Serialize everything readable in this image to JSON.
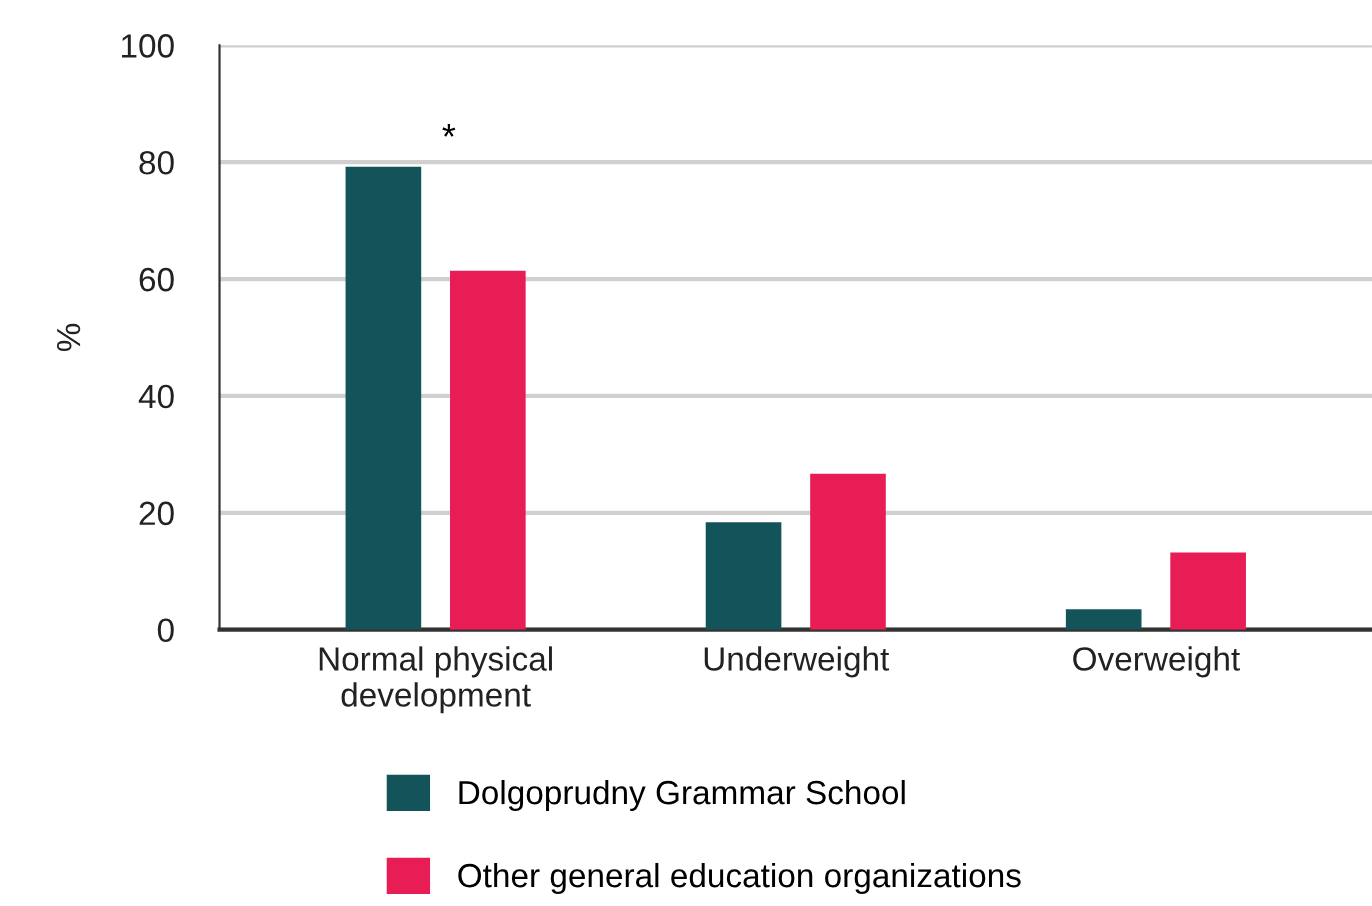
{
  "chart_data": {
    "type": "bar",
    "ylabel": "%",
    "categories": [
      "Normal physical\ndevelopment",
      "Underweight",
      "Overweight"
    ],
    "series": [
      {
        "name": "Dolgoprudny Grammar School",
        "color": "#13535a",
        "values": [
          79.2,
          18.4,
          3.5
        ]
      },
      {
        "name": "Other general education organizations",
        "color": "#e81d55",
        "values": [
          61.4,
          26.7,
          13.2
        ]
      }
    ],
    "ylim": [
      0,
      100
    ],
    "yticks": [
      0,
      20,
      40,
      60,
      80,
      100
    ],
    "grid": "y",
    "legend": "bottom",
    "annotations": [
      "*"
    ]
  }
}
